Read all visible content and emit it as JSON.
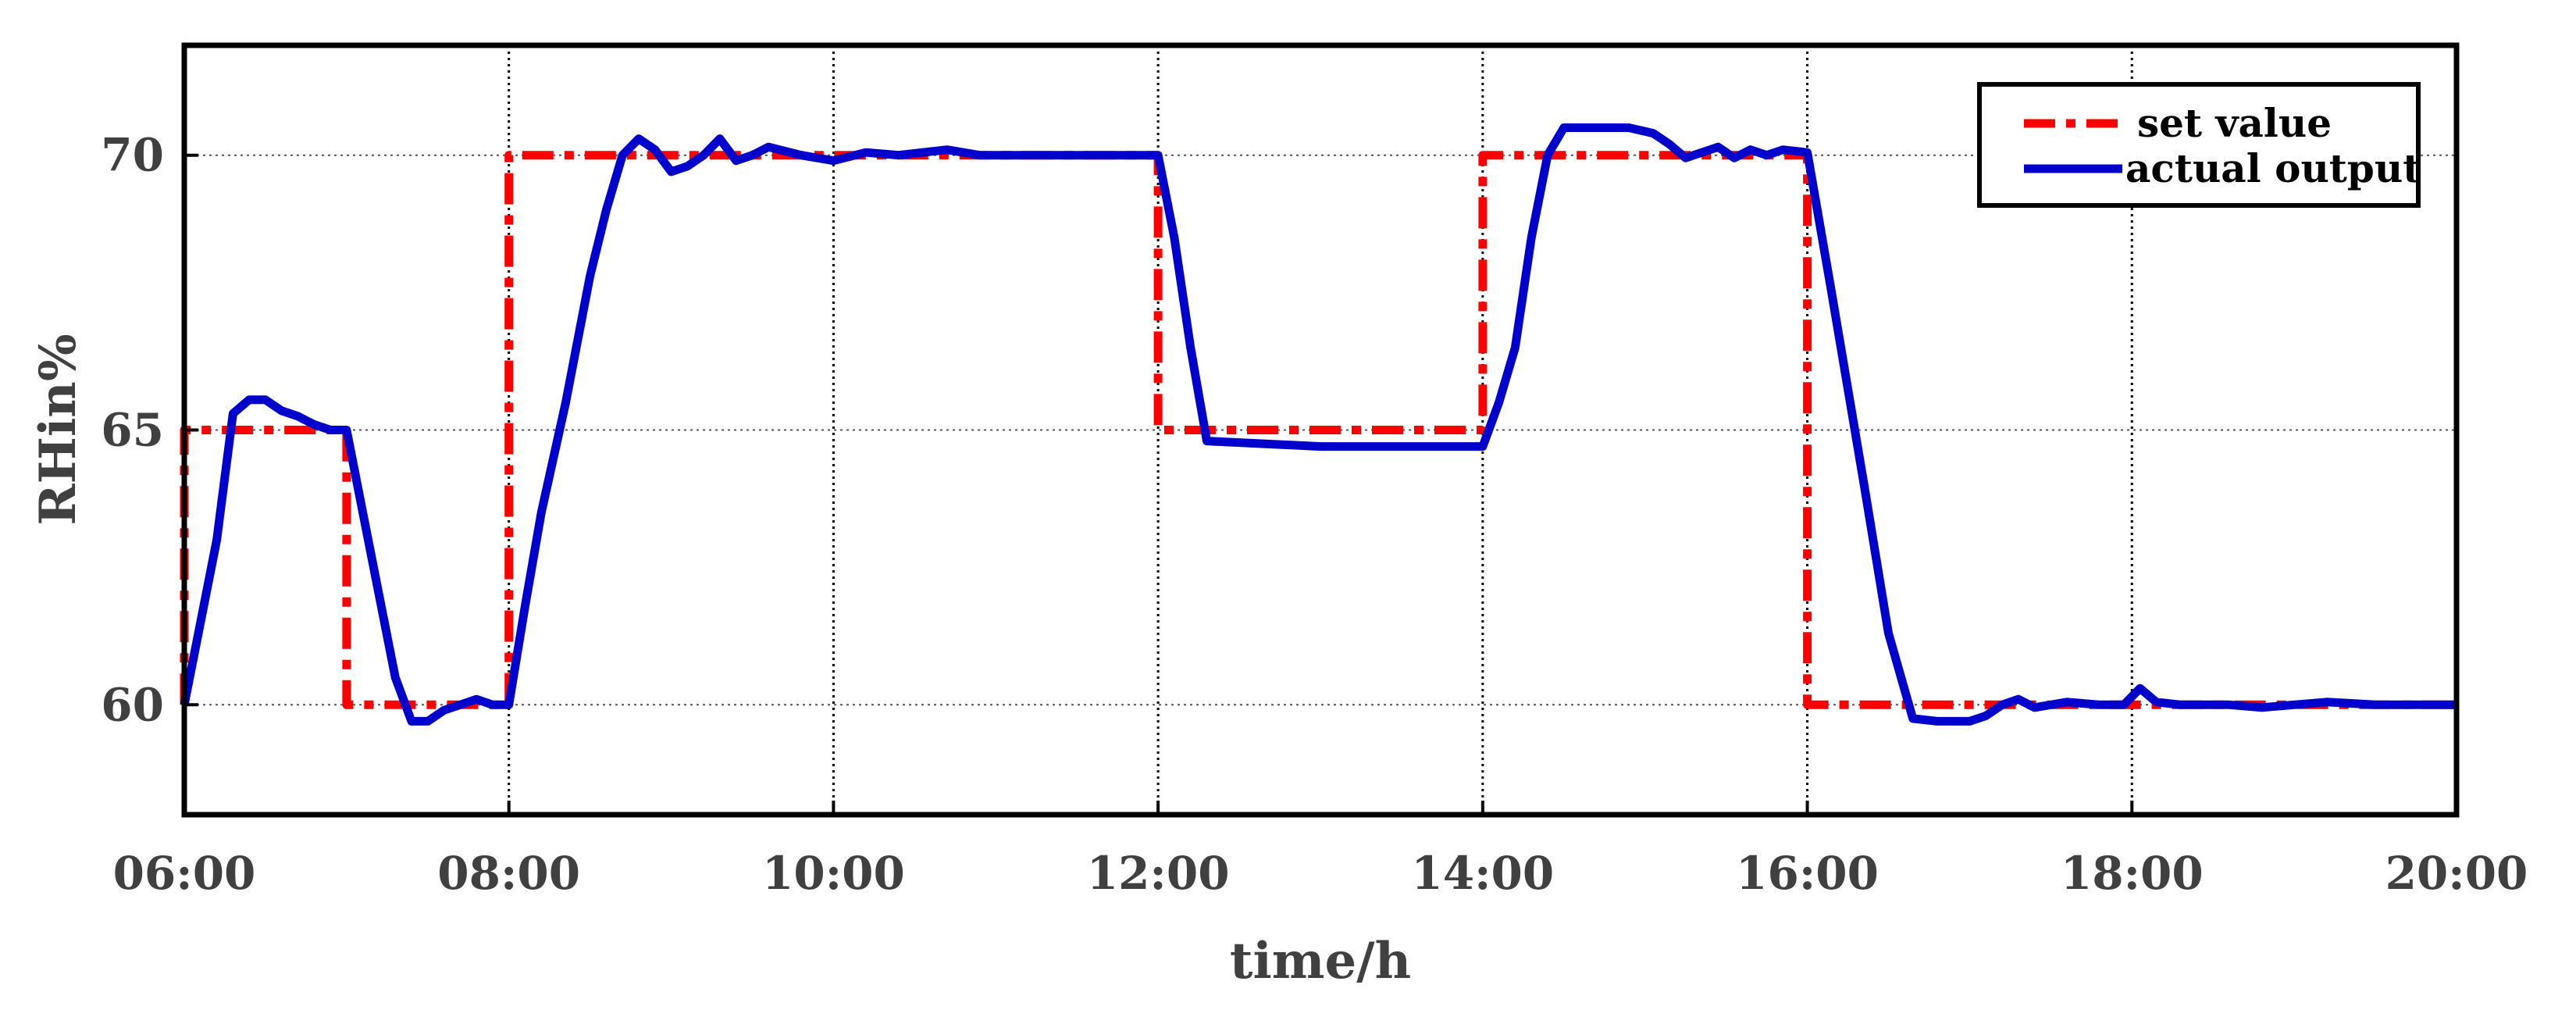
{
  "chart_data": {
    "type": "line",
    "xlabel": "time/h",
    "ylabel": "RHin%",
    "xlim": [
      6,
      20
    ],
    "ylim": [
      58,
      72
    ],
    "x_ticks": [
      {
        "value": 6,
        "label": "06:00"
      },
      {
        "value": 8,
        "label": "08:00"
      },
      {
        "value": 10,
        "label": "10:00"
      },
      {
        "value": 12,
        "label": "12:00"
      },
      {
        "value": 14,
        "label": "14:00"
      },
      {
        "value": 16,
        "label": "16:00"
      },
      {
        "value": 18,
        "label": "18:00"
      },
      {
        "value": 20,
        "label": "20:00"
      }
    ],
    "y_ticks": [
      {
        "value": 60,
        "label": "60"
      },
      {
        "value": 65,
        "label": "65"
      },
      {
        "value": 70,
        "label": "70"
      }
    ],
    "grid": true,
    "legend_position": "top-right",
    "series": [
      {
        "name": "set value",
        "color": "#ff0000",
        "style": "dash-dot",
        "points": [
          [
            6.0,
            60.0
          ],
          [
            6.0,
            65.0
          ],
          [
            7.0,
            65.0
          ],
          [
            7.0,
            60.0
          ],
          [
            8.0,
            60.0
          ],
          [
            8.0,
            70.0
          ],
          [
            12.0,
            70.0
          ],
          [
            12.0,
            65.0
          ],
          [
            14.0,
            65.0
          ],
          [
            14.0,
            70.0
          ],
          [
            16.0,
            70.0
          ],
          [
            16.0,
            60.0
          ],
          [
            20.0,
            60.0
          ]
        ]
      },
      {
        "name": "actual output",
        "color": "#0000cc",
        "style": "solid",
        "points": [
          [
            6.0,
            60.0
          ],
          [
            6.1,
            61.5
          ],
          [
            6.2,
            63.0
          ],
          [
            6.3,
            65.3
          ],
          [
            6.4,
            65.55
          ],
          [
            6.5,
            65.55
          ],
          [
            6.6,
            65.35
          ],
          [
            6.7,
            65.25
          ],
          [
            6.8,
            65.1
          ],
          [
            6.9,
            65.0
          ],
          [
            7.0,
            65.0
          ],
          [
            7.1,
            63.5
          ],
          [
            7.2,
            62.0
          ],
          [
            7.3,
            60.5
          ],
          [
            7.4,
            59.7
          ],
          [
            7.5,
            59.7
          ],
          [
            7.6,
            59.9
          ],
          [
            7.7,
            60.0
          ],
          [
            7.8,
            60.1
          ],
          [
            7.9,
            60.0
          ],
          [
            8.0,
            60.0
          ],
          [
            8.1,
            61.8
          ],
          [
            8.2,
            63.5
          ],
          [
            8.35,
            65.5
          ],
          [
            8.5,
            67.8
          ],
          [
            8.6,
            69.0
          ],
          [
            8.7,
            70.0
          ],
          [
            8.8,
            70.3
          ],
          [
            8.9,
            70.1
          ],
          [
            9.0,
            69.7
          ],
          [
            9.1,
            69.8
          ],
          [
            9.2,
            70.0
          ],
          [
            9.3,
            70.3
          ],
          [
            9.4,
            69.9
          ],
          [
            9.5,
            70.0
          ],
          [
            9.6,
            70.15
          ],
          [
            9.8,
            70.0
          ],
          [
            10.0,
            69.9
          ],
          [
            10.2,
            70.05
          ],
          [
            10.4,
            70.0
          ],
          [
            10.7,
            70.1
          ],
          [
            10.9,
            70.0
          ],
          [
            11.2,
            70.0
          ],
          [
            12.0,
            70.0
          ],
          [
            12.1,
            68.5
          ],
          [
            12.2,
            66.5
          ],
          [
            12.3,
            64.8
          ],
          [
            13.0,
            64.7
          ],
          [
            13.5,
            64.7
          ],
          [
            14.0,
            64.7
          ],
          [
            14.1,
            65.5
          ],
          [
            14.2,
            66.5
          ],
          [
            14.3,
            68.5
          ],
          [
            14.4,
            70.0
          ],
          [
            14.5,
            70.5
          ],
          [
            14.7,
            70.5
          ],
          [
            14.9,
            70.5
          ],
          [
            15.05,
            70.4
          ],
          [
            15.15,
            70.2
          ],
          [
            15.25,
            69.95
          ],
          [
            15.35,
            70.05
          ],
          [
            15.45,
            70.15
          ],
          [
            15.55,
            69.95
          ],
          [
            15.65,
            70.1
          ],
          [
            15.75,
            70.0
          ],
          [
            15.85,
            70.1
          ],
          [
            16.0,
            70.05
          ],
          [
            16.15,
            67.5
          ],
          [
            16.35,
            64.0
          ],
          [
            16.5,
            61.3
          ],
          [
            16.65,
            59.75
          ],
          [
            16.8,
            59.7
          ],
          [
            17.0,
            59.7
          ],
          [
            17.1,
            59.8
          ],
          [
            17.2,
            60.0
          ],
          [
            17.3,
            60.1
          ],
          [
            17.4,
            59.95
          ],
          [
            17.5,
            60.0
          ],
          [
            17.6,
            60.05
          ],
          [
            17.8,
            60.0
          ],
          [
            17.95,
            60.0
          ],
          [
            18.05,
            60.3
          ],
          [
            18.15,
            60.05
          ],
          [
            18.3,
            60.0
          ],
          [
            18.6,
            60.0
          ],
          [
            18.8,
            59.95
          ],
          [
            19.0,
            60.0
          ],
          [
            19.2,
            60.05
          ],
          [
            19.5,
            60.0
          ],
          [
            20.0,
            60.0
          ]
        ]
      }
    ]
  }
}
